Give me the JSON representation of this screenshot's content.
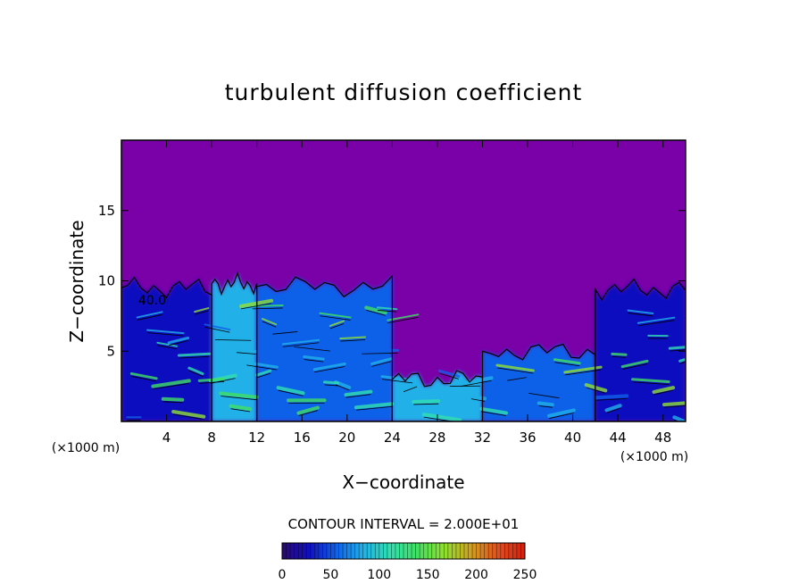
{
  "chart_data": {
    "type": "heatmap",
    "title": "turbulent diffusion coefficient",
    "xlabel": "X−coordinate",
    "ylabel": "Z−coordinate",
    "x_unit": "(×1000 m)",
    "y_unit": "(×1000 m)",
    "xlim": [
      0,
      50
    ],
    "ylim": [
      0,
      20
    ],
    "x_ticks": [
      4,
      8,
      12,
      16,
      20,
      24,
      28,
      32,
      36,
      40,
      44,
      48
    ],
    "y_ticks": [
      5,
      10,
      15
    ],
    "x_tick_labels": [
      "4",
      "8",
      "12",
      "16",
      "20",
      "24",
      "28",
      "32",
      "36",
      "40",
      "44",
      "48"
    ],
    "y_tick_labels": [
      "5",
      "10",
      "15"
    ],
    "contour_interval_text": "CONTOUR INTERVAL = 2.000E+01",
    "contour_label": "40.0",
    "colorbar": {
      "range": [
        0,
        250
      ],
      "ticks": [
        0,
        50,
        100,
        150,
        200,
        250
      ],
      "tick_labels": [
        "0",
        "50",
        "100",
        "150",
        "200",
        "250"
      ],
      "colors": [
        "#2a0a6e",
        "#1010c0",
        "#1060e8",
        "#20b0e8",
        "#30e0b0",
        "#40e060",
        "#90e030",
        "#d0a020",
        "#e05020",
        "#d02010"
      ]
    },
    "background_color": "#7a00a8",
    "field_regions": [
      {
        "x_from": 0,
        "x_to": 50,
        "z_from": 9.3,
        "z_to": 20,
        "value": 0
      },
      {
        "x_from": 0,
        "x_to": 8,
        "z_from": 0,
        "z_to": 9.5,
        "value": 40
      },
      {
        "x_from": 8,
        "x_to": 12,
        "z_from": 0,
        "z_to": 9.8,
        "value": 90
      },
      {
        "x_from": 12,
        "x_to": 24,
        "z_from": 0,
        "z_to": 9.6,
        "value": 45
      },
      {
        "x_from": 24,
        "x_to": 32,
        "z_from": 0,
        "z_to": 3.0,
        "value": 70
      },
      {
        "x_from": 32,
        "x_to": 42,
        "z_from": 0,
        "z_to": 5.0,
        "value": 50
      },
      {
        "x_from": 42,
        "x_to": 50,
        "z_from": 0,
        "z_to": 9.4,
        "value": 40
      }
    ]
  }
}
